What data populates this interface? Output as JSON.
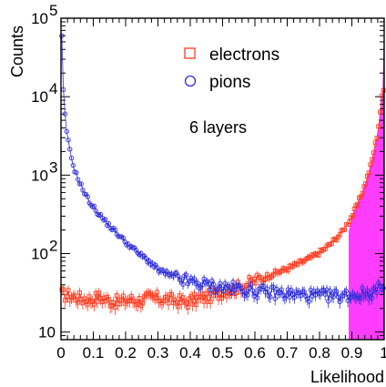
{
  "chart_data": {
    "type": "scatter",
    "title": "",
    "xlabel": "Likelihood",
    "ylabel": "Counts",
    "xlim": [
      0,
      1
    ],
    "ylim": [
      8,
      100000
    ],
    "y_scale": "log",
    "x_ticks": [
      "0",
      "0.1",
      "0.2",
      "0.3",
      "0.4",
      "0.5",
      "0.6",
      "0.7",
      "0.8",
      "0.9",
      "1"
    ],
    "y_ticks": [
      {
        "value": 10,
        "base": "10",
        "exp": ""
      },
      {
        "value": 100,
        "base": "10",
        "exp": "2"
      },
      {
        "value": 1000,
        "base": "10",
        "exp": "3"
      },
      {
        "value": 10000,
        "base": "10",
        "exp": "4"
      },
      {
        "value": 100000,
        "base": "10",
        "exp": "5"
      }
    ],
    "legend_position": "top-center",
    "annotation": "6 layers",
    "shaded_region": {
      "x_from": 0.89,
      "x_to": 1.0,
      "color": "#ff33ff"
    },
    "series": [
      {
        "name": "electrons",
        "marker": "square",
        "color": "#ff3b1f",
        "x": [
          0.005,
          0.03,
          0.06,
          0.09,
          0.12,
          0.15,
          0.18,
          0.21,
          0.24,
          0.27,
          0.3,
          0.33,
          0.36,
          0.39,
          0.42,
          0.45,
          0.48,
          0.51,
          0.54,
          0.57,
          0.6,
          0.63,
          0.66,
          0.69,
          0.72,
          0.75,
          0.78,
          0.81,
          0.84,
          0.87,
          0.9,
          0.92,
          0.94,
          0.96,
          0.98,
          0.995
        ],
        "y": [
          30,
          29,
          27,
          26,
          28,
          25,
          24,
          26,
          25,
          27,
          27,
          26,
          25,
          24,
          26,
          28,
          30,
          34,
          36,
          40,
          45,
          50,
          56,
          62,
          70,
          80,
          92,
          110,
          140,
          190,
          300,
          450,
          750,
          1400,
          3500,
          12000
        ]
      },
      {
        "name": "pions",
        "marker": "circle",
        "color": "#2f2fd8",
        "x": [
          0.002,
          0.005,
          0.01,
          0.02,
          0.03,
          0.04,
          0.05,
          0.06,
          0.07,
          0.08,
          0.1,
          0.12,
          0.14,
          0.16,
          0.18,
          0.2,
          0.22,
          0.24,
          0.26,
          0.28,
          0.3,
          0.33,
          0.36,
          0.39,
          0.42,
          0.45,
          0.48,
          0.51,
          0.54,
          0.57,
          0.6,
          0.63,
          0.66,
          0.69,
          0.72,
          0.75,
          0.78,
          0.81,
          0.84,
          0.87,
          0.9,
          0.92,
          0.94,
          0.96,
          0.98,
          0.995
        ],
        "y": [
          70000,
          20000,
          7000,
          3000,
          1800,
          1250,
          950,
          780,
          620,
          520,
          390,
          310,
          250,
          205,
          170,
          140,
          120,
          100,
          88,
          75,
          62,
          55,
          48,
          45,
          42,
          40,
          38,
          37,
          36,
          35,
          33,
          32,
          32,
          31,
          30,
          30,
          29,
          29,
          29,
          29,
          30,
          30,
          31,
          32,
          34,
          42
        ]
      }
    ]
  }
}
